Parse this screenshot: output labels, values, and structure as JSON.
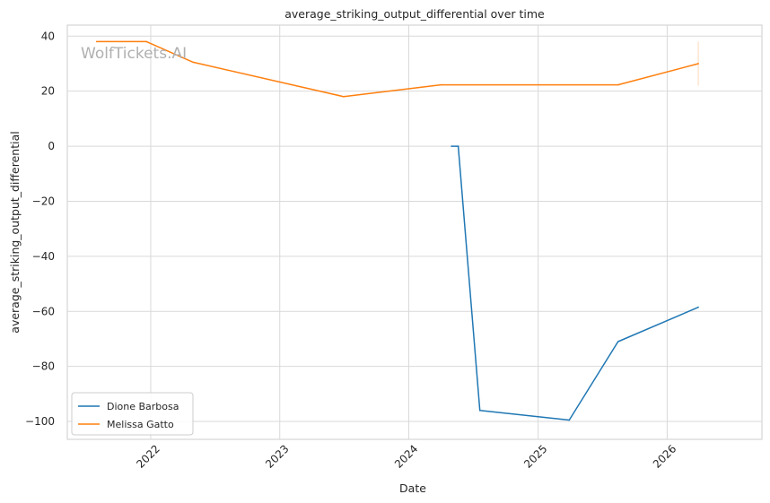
{
  "chart_data": {
    "type": "line",
    "title": "average_striking_output_differential over time",
    "xlabel": "Date",
    "ylabel": "average_striking_output_differential",
    "watermark": "WolfTickets.AI",
    "x_ticks": [
      "2022",
      "2023",
      "2024",
      "2025",
      "2026"
    ],
    "y_ticks": [
      40,
      20,
      0,
      -20,
      -40,
      -60,
      -80,
      -100
    ],
    "xlim": [
      "2021-05-10",
      "2026-09-26"
    ],
    "ylim": [
      -106.5,
      44
    ],
    "grid": true,
    "legend_position": "lower-left",
    "series": [
      {
        "name": "Dione Barbosa",
        "color": "#1f77b4",
        "points": [
          {
            "x": "2024-05-01",
            "y": 0
          },
          {
            "x": "2024-05-20",
            "y": 0
          },
          {
            "x": "2024-07-20",
            "y": -96
          },
          {
            "x": "2025-03-30",
            "y": -99.5
          },
          {
            "x": "2025-08-15",
            "y": -71
          },
          {
            "x": "2026-03-30",
            "y": -58.5
          }
        ]
      },
      {
        "name": "Melissa Gatto",
        "color": "#ff7f0e",
        "points": [
          {
            "x": "2021-08-01",
            "y": 38
          },
          {
            "x": "2021-12-20",
            "y": 38
          },
          {
            "x": "2022-05-01",
            "y": 30.5
          },
          {
            "x": "2023-07-01",
            "y": 18
          },
          {
            "x": "2024-04-01",
            "y": 22.3
          },
          {
            "x": "2025-08-15",
            "y": 22.3
          },
          {
            "x": "2026-03-30",
            "y": 30
          }
        ],
        "error_bar": {
          "x": "2026-03-30",
          "low": 22,
          "high": 38
        }
      }
    ]
  }
}
